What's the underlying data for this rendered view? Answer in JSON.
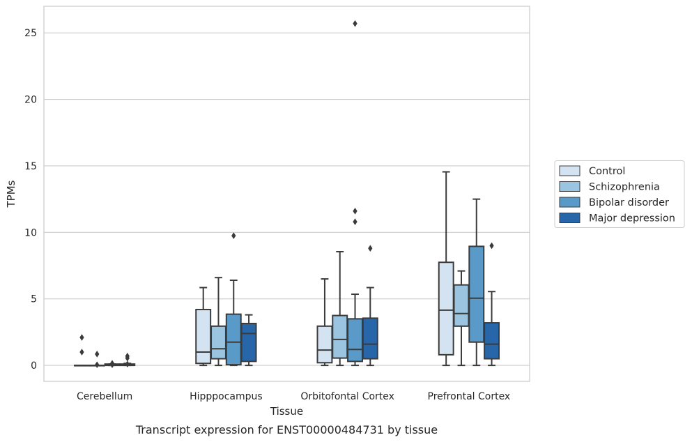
{
  "chart_data": {
    "type": "box",
    "title": "",
    "caption": "Transcript expression for ENST00000484731 by tissue",
    "xlabel": "Tissue",
    "ylabel": "TPMs",
    "ylim": [
      -1.2,
      27.0
    ],
    "yticks": [
      0,
      5,
      10,
      15,
      20,
      25
    ],
    "grid": "horizontal",
    "legend_position": "right",
    "categories": [
      "Cerebellum",
      "Hipppocampus",
      "Orbitofontal Cortex",
      "Prefrontal Cortex"
    ],
    "series": [
      {
        "name": "Control",
        "color": "#d4e3f1",
        "boxes": [
          {
            "whisker_low": 0,
            "q1": 0,
            "median": 0,
            "q3": 0,
            "whisker_high": 0,
            "outliers": [
              2.1,
              1.0
            ]
          },
          {
            "whisker_low": 0,
            "q1": 0.15,
            "median": 1.0,
            "q3": 4.2,
            "whisker_high": 5.85,
            "outliers": []
          },
          {
            "whisker_low": 0,
            "q1": 0.2,
            "median": 1.15,
            "q3": 2.95,
            "whisker_high": 6.5,
            "outliers": []
          },
          {
            "whisker_low": 0,
            "q1": 0.8,
            "median": 4.15,
            "q3": 7.75,
            "whisker_high": 14.55,
            "outliers": []
          }
        ]
      },
      {
        "name": "Schizophrenia",
        "color": "#9ac4e0",
        "boxes": [
          {
            "whisker_low": 0,
            "q1": 0,
            "median": 0,
            "q3": 0,
            "whisker_high": 0,
            "outliers": [
              0.85,
              0.05
            ]
          },
          {
            "whisker_low": 0,
            "q1": 0.5,
            "median": 1.25,
            "q3": 2.95,
            "whisker_high": 6.6,
            "outliers": []
          },
          {
            "whisker_low": 0,
            "q1": 0.55,
            "median": 1.95,
            "q3": 3.75,
            "whisker_high": 8.55,
            "outliers": []
          },
          {
            "whisker_low": 0,
            "q1": 2.95,
            "median": 3.9,
            "q3": 6.05,
            "whisker_high": 7.1,
            "outliers": []
          }
        ]
      },
      {
        "name": "Bipolar disorder",
        "color": "#5a9ac8",
        "boxes": [
          {
            "whisker_low": 0,
            "q1": 0,
            "median": 0.05,
            "q3": 0.1,
            "whisker_high": 0.1,
            "outliers": [
              0.15,
              0.05
            ]
          },
          {
            "whisker_low": 0,
            "q1": 0.05,
            "median": 1.75,
            "q3": 3.85,
            "whisker_high": 6.4,
            "outliers": [
              9.75
            ]
          },
          {
            "whisker_low": 0,
            "q1": 0.3,
            "median": 1.2,
            "q3": 3.5,
            "whisker_high": 5.35,
            "outliers": [
              10.8,
              11.6,
              25.7
            ]
          },
          {
            "whisker_low": 0,
            "q1": 1.75,
            "median": 5.05,
            "q3": 8.95,
            "whisker_high": 12.5,
            "outliers": []
          }
        ]
      },
      {
        "name": "Major depression",
        "color": "#2666a9",
        "boxes": [
          {
            "whisker_low": 0,
            "q1": 0,
            "median": 0.05,
            "q3": 0.1,
            "whisker_high": 0.15,
            "outliers": [
              0.7,
              0.55,
              0.1
            ]
          },
          {
            "whisker_low": 0,
            "q1": 0.3,
            "median": 2.4,
            "q3": 3.15,
            "whisker_high": 3.8,
            "outliers": []
          },
          {
            "whisker_low": 0,
            "q1": 0.5,
            "median": 1.6,
            "q3": 3.55,
            "whisker_high": 5.85,
            "outliers": [
              8.8
            ]
          },
          {
            "whisker_low": 0,
            "q1": 0.5,
            "median": 1.6,
            "q3": 3.2,
            "whisker_high": 5.55,
            "outliers": [
              9.0
            ]
          }
        ]
      }
    ]
  }
}
